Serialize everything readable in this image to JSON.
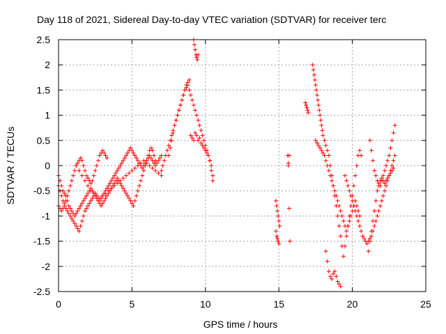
{
  "chart_data": {
    "type": "scatter",
    "title": "Day 118 of 2021, Sidereal Day-to-day VTEC variation (SDTVAR) for receiver terc",
    "xlabel": "GPS time / hours",
    "ylabel": "SDTVAR / TECUs",
    "xlim": [
      0,
      25
    ],
    "ylim": [
      -2.5,
      2.5
    ],
    "x_ticks": [
      0,
      5,
      10,
      15,
      20,
      25
    ],
    "y_ticks": [
      -2.5,
      -2,
      -1.5,
      -1,
      -0.5,
      0,
      0.5,
      1,
      1.5,
      2,
      2.5
    ],
    "x_tick_labels": [
      "0",
      "5",
      "10",
      "15",
      "20",
      "25"
    ],
    "y_tick_labels": [
      "-2.5",
      "-2",
      "-1.5",
      "-1",
      "-0.5",
      "0",
      "0.5",
      "1",
      "1.5",
      "2",
      "2.5"
    ],
    "grid": true,
    "marker": "plus",
    "color": "#ff0000",
    "series": [
      {
        "x": [
          0.0,
          0.1,
          0.2,
          0.3,
          0.4,
          0.5,
          0.6,
          0.7,
          0.8,
          0.9,
          1.0,
          1.1,
          1.2,
          1.3,
          1.4,
          1.5,
          1.6,
          1.7,
          1.8,
          1.9,
          2.0,
          2.1,
          2.2,
          2.3,
          2.4,
          2.5,
          2.6,
          2.7,
          2.8,
          2.9,
          3.0,
          3.1,
          3.2,
          3.3,
          0.0,
          0.1,
          0.2,
          0.3,
          0.4,
          0.5,
          0.6,
          0.7,
          0.8,
          0.9,
          1.0,
          1.1,
          1.2,
          1.3,
          1.4,
          1.5,
          1.6,
          1.7,
          1.8,
          1.9,
          2.0,
          2.1,
          2.2,
          2.3,
          2.4,
          2.5,
          2.6,
          2.7,
          2.8,
          2.9,
          3.0,
          3.1,
          3.2,
          3.3,
          3.4,
          3.5,
          3.6,
          3.7,
          3.8,
          3.9,
          4.0,
          4.1,
          4.2,
          4.3,
          4.4,
          4.5,
          4.6,
          4.7,
          4.8,
          4.9,
          5.0,
          5.1,
          5.2,
          5.3,
          5.4,
          5.5,
          5.6,
          5.7,
          5.8,
          5.9,
          6.0,
          6.1,
          6.2,
          6.3,
          6.4,
          6.5,
          6.6,
          6.7,
          6.8,
          6.9,
          7.0,
          0.0,
          0.1,
          0.2,
          0.3,
          0.4,
          0.5,
          0.6,
          0.7,
          0.8,
          0.9,
          1.0,
          1.1,
          1.2,
          1.3,
          1.4,
          1.5,
          1.6,
          1.7,
          1.8,
          1.9,
          2.0,
          2.1,
          2.2,
          2.3,
          2.4,
          2.5,
          2.6,
          2.7,
          2.8,
          2.9,
          3.0,
          3.1,
          3.2,
          3.3,
          3.4,
          3.5,
          3.6,
          3.7,
          3.8,
          3.9,
          4.0,
          4.1,
          4.2,
          4.3,
          4.4,
          4.5,
          4.6,
          4.7,
          4.8,
          4.9,
          5.0,
          5.1,
          5.2,
          5.3,
          5.4,
          5.5,
          5.6,
          5.7,
          5.8,
          5.9,
          6.0,
          6.1,
          6.2,
          6.3,
          6.4,
          6.5,
          6.6,
          1.2,
          1.4,
          1.6,
          1.8,
          2.0,
          2.2,
          2.4,
          2.6,
          2.8,
          3.0,
          3.2,
          3.4,
          3.6,
          3.8,
          4.0,
          4.2,
          4.4,
          4.6,
          4.8,
          5.0,
          5.2,
          5.4,
          5.6,
          5.8,
          6.0,
          6.2,
          6.4,
          6.6,
          6.8,
          7.0,
          7.0,
          7.1,
          7.2,
          7.3,
          7.4,
          7.5,
          7.6,
          7.7,
          7.8,
          7.9,
          8.0,
          8.1,
          8.2,
          8.3,
          8.4,
          8.5,
          8.6,
          8.7,
          8.8,
          8.9,
          9.0,
          9.1,
          9.2,
          9.3,
          9.4,
          9.5,
          9.6,
          9.7,
          9.8,
          9.9,
          10.0,
          10.1,
          10.2,
          10.3,
          10.4,
          10.5,
          7.5,
          7.6,
          7.7,
          7.8,
          7.9,
          8.0,
          8.1,
          8.2,
          8.3,
          8.4,
          8.5,
          8.6,
          8.7,
          8.8,
          8.9,
          9.0,
          9.1,
          9.2,
          9.3,
          9.4,
          9.5,
          9.6,
          9.7,
          9.8,
          9.9,
          10.0,
          10.1,
          10.2,
          10.3,
          10.4,
          10.5,
          9.2,
          9.25,
          9.3,
          9.35,
          9.4,
          9.45,
          9.5,
          14.8,
          14.85,
          14.9,
          14.95,
          15.0,
          15.05,
          14.8,
          14.85,
          14.9,
          14.95,
          15.0,
          15.6,
          15.65,
          15.7,
          15.75,
          15.7,
          15.65,
          16.8,
          16.85,
          16.9,
          16.95,
          17.0,
          17.3,
          17.35,
          17.4,
          17.45,
          17.5,
          17.55,
          17.6,
          17.65,
          17.7,
          17.75,
          17.8,
          17.85,
          17.9,
          17.95,
          18.0,
          18.1,
          18.2,
          18.3,
          18.4,
          18.5,
          18.6,
          18.7,
          18.8,
          18.9,
          19.0,
          19.1,
          19.2,
          19.3,
          19.4,
          19.5,
          19.6,
          19.7,
          19.8,
          19.9,
          20.0,
          20.1,
          20.2,
          20.3,
          20.4,
          20.5,
          20.6,
          17.5,
          17.6,
          17.7,
          17.8,
          17.9,
          18.0,
          18.1,
          18.2,
          18.3,
          18.4,
          18.5,
          18.6,
          18.7,
          18.8,
          18.9,
          19.0,
          19.1,
          19.2,
          19.3,
          19.4,
          19.5,
          19.6,
          19.7,
          19.8,
          19.9,
          20.0,
          20.1,
          20.2,
          20.3,
          20.4,
          20.5,
          18.2,
          18.3,
          18.4,
          18.5,
          18.6,
          18.7,
          18.8,
          18.9,
          19.0,
          19.1,
          19.2,
          19.5,
          19.6,
          19.7,
          19.8,
          19.9,
          20.0,
          20.1,
          20.2,
          20.3,
          20.4,
          20.5,
          20.6,
          20.7,
          20.8,
          20.9,
          21.0,
          21.1,
          21.2,
          21.3,
          21.4,
          21.5,
          21.6,
          21.7,
          21.8,
          21.9,
          22.0,
          22.1,
          22.2,
          22.3,
          22.4,
          22.5,
          22.6,
          22.7,
          22.8,
          22.9,
          21.2,
          21.3,
          21.4,
          21.5,
          21.6,
          21.7,
          21.8,
          21.9,
          22.0,
          22.1,
          22.2,
          22.3,
          22.4,
          22.5,
          22.6,
          22.7,
          22.8,
          22.9,
          21.1,
          21.2,
          21.3,
          21.4,
          21.5,
          21.6,
          21.7,
          21.8,
          21.9,
          22.0,
          22.1,
          22.2,
          22.3,
          22.4,
          22.5,
          22.6,
          22.7,
          22.8
        ],
        "y": [
          -0.4,
          -0.5,
          -0.6,
          -0.7,
          -0.75,
          -0.7,
          -0.6,
          -0.5,
          -0.4,
          -0.3,
          -0.2,
          -0.1,
          0.0,
          0.05,
          0.1,
          0.15,
          0.1,
          0.0,
          -0.1,
          -0.2,
          -0.25,
          -0.3,
          -0.35,
          -0.3,
          -0.2,
          -0.1,
          0.0,
          0.1,
          0.2,
          0.25,
          0.3,
          0.25,
          0.2,
          0.15,
          -0.8,
          -0.85,
          -0.9,
          -0.85,
          -0.8,
          -0.85,
          -0.9,
          -0.95,
          -1.0,
          -1.05,
          -1.1,
          -1.15,
          -1.2,
          -1.25,
          -1.3,
          -1.2,
          -1.1,
          -1.0,
          -0.9,
          -0.85,
          -0.8,
          -0.75,
          -0.7,
          -0.65,
          -0.6,
          -0.55,
          -0.6,
          -0.65,
          -0.7,
          -0.65,
          -0.6,
          -0.55,
          -0.5,
          -0.45,
          -0.4,
          -0.35,
          -0.3,
          -0.25,
          -0.2,
          -0.15,
          -0.1,
          -0.05,
          0.0,
          0.05,
          0.1,
          0.15,
          0.2,
          0.25,
          0.3,
          0.35,
          0.3,
          0.25,
          0.2,
          0.15,
          0.1,
          0.05,
          0.0,
          -0.05,
          0.0,
          0.05,
          0.1,
          0.15,
          0.2,
          0.15,
          0.1,
          0.05,
          0.0,
          0.05,
          0.1,
          0.15,
          0.2,
          -0.2,
          -0.3,
          -0.4,
          -0.5,
          -0.55,
          -0.6,
          -0.7,
          -0.8,
          -0.85,
          -0.9,
          -0.95,
          -1.0,
          -0.95,
          -0.9,
          -0.85,
          -0.8,
          -0.75,
          -0.7,
          -0.65,
          -0.6,
          -0.55,
          -0.5,
          -0.45,
          -0.5,
          -0.55,
          -0.6,
          -0.65,
          -0.7,
          -0.75,
          -0.8,
          -0.75,
          -0.7,
          -0.65,
          -0.6,
          -0.55,
          -0.5,
          -0.45,
          -0.4,
          -0.35,
          -0.3,
          -0.25,
          -0.3,
          -0.35,
          -0.4,
          -0.45,
          -0.5,
          -0.55,
          -0.6,
          -0.65,
          -0.7,
          -0.75,
          -0.8,
          -0.7,
          -0.6,
          -0.5,
          -0.4,
          -0.3,
          -0.2,
          -0.1,
          0.0,
          0.1,
          0.2,
          0.3,
          0.35,
          0.3,
          0.2,
          0.1,
          0.0,
          -0.1,
          -0.2,
          -0.3,
          -0.4,
          -0.5,
          -0.55,
          -0.6,
          -0.65,
          -0.6,
          -0.55,
          -0.5,
          -0.45,
          -0.4,
          -0.35,
          -0.3,
          -0.25,
          -0.2,
          -0.15,
          -0.1,
          -0.05,
          0.0,
          0.05,
          0.1,
          0.05,
          0.0,
          -0.05,
          -0.1,
          -0.15,
          -0.2,
          -0.1,
          0.0,
          0.1,
          0.2,
          0.3,
          0.4,
          0.5,
          0.6,
          0.7,
          0.8,
          0.9,
          1.0,
          1.1,
          1.2,
          1.3,
          1.4,
          1.5,
          1.6,
          1.65,
          1.7,
          0.6,
          0.55,
          0.5,
          0.65,
          0.6,
          0.5,
          0.55,
          0.45,
          0.4,
          0.35,
          0.3,
          0.25,
          0.2,
          0.1,
          -0.1,
          -0.3,
          0.2,
          0.35,
          0.5,
          0.65,
          0.8,
          0.9,
          1.0,
          1.1,
          1.2,
          1.3,
          1.4,
          1.5,
          1.55,
          1.6,
          1.5,
          1.4,
          1.3,
          1.2,
          1.1,
          1.0,
          0.9,
          0.8,
          0.7,
          0.6,
          0.5,
          0.4,
          0.3,
          0.2,
          0.1,
          0.0,
          -0.2,
          2.5,
          2.4,
          2.3,
          2.2,
          2.15,
          2.1,
          2.2,
          -0.7,
          -0.8,
          -0.9,
          -1.0,
          -1.1,
          -1.2,
          -1.3,
          -1.4,
          -1.45,
          -1.5,
          -1.55,
          0.2,
          0.0,
          -0.85,
          -1.5,
          0.2,
          0.05,
          1.25,
          1.2,
          1.15,
          1.1,
          1.05,
          2.0,
          1.9,
          1.8,
          1.7,
          1.6,
          1.5,
          1.4,
          1.3,
          1.2,
          1.1,
          1.0,
          0.9,
          0.8,
          0.7,
          0.6,
          0.5,
          0.4,
          0.3,
          0.2,
          0.0,
          -0.2,
          -0.4,
          -0.6,
          -0.8,
          -1.0,
          -1.2,
          -1.4,
          -1.6,
          -1.8,
          -1.6,
          -1.4,
          -1.2,
          -1.0,
          -0.8,
          -0.6,
          -0.4,
          -0.2,
          0.0,
          0.2,
          0.3,
          0.2,
          0.5,
          0.45,
          0.4,
          0.35,
          0.3,
          0.25,
          0.2,
          0.1,
          0.0,
          -0.1,
          -0.2,
          -0.3,
          -0.4,
          -0.5,
          -0.6,
          -0.7,
          -0.8,
          -0.9,
          -1.0,
          -1.1,
          -1.2,
          -1.3,
          -1.2,
          -1.1,
          -1.0,
          -0.9,
          -0.8,
          -0.7,
          -0.8,
          -0.9,
          -1.0,
          -1.7,
          -1.9,
          -2.1,
          -2.2,
          -2.25,
          -2.15,
          -2.1,
          -2.2,
          -2.3,
          -2.35,
          -2.4,
          -0.2,
          -0.3,
          -0.4,
          -0.5,
          -0.6,
          -0.7,
          -0.8,
          -0.9,
          -1.0,
          -1.1,
          -1.2,
          -1.3,
          -1.4,
          -1.45,
          -1.5,
          -1.55,
          -1.5,
          -1.45,
          -1.4,
          -1.3,
          -1.2,
          -1.1,
          -1.0,
          -0.9,
          -0.8,
          -0.7,
          -0.6,
          -0.5,
          -0.4,
          -0.3,
          -0.2,
          -0.1,
          0.0,
          0.1,
          0.2,
          0.5,
          0.3,
          0.1,
          -0.1,
          -0.2,
          -0.3,
          -0.35,
          -0.4,
          -0.3,
          -0.2,
          -0.1,
          0.0,
          0.1,
          0.2,
          0.35,
          0.5,
          0.65,
          0.8,
          -1.7,
          -1.5,
          -1.3,
          -1.1,
          -0.9,
          -0.7,
          -0.5,
          -0.4,
          -0.3,
          -0.25,
          -0.3,
          -0.35,
          -0.3,
          -0.25,
          -0.2,
          -0.15,
          -0.1,
          -0.05
        ]
      }
    ]
  }
}
